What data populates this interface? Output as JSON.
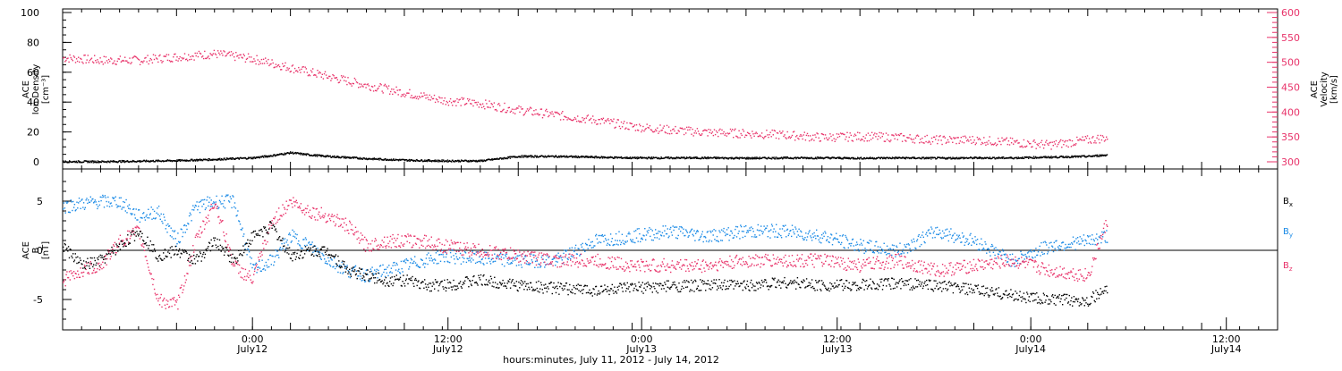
{
  "colors": {
    "black": "#000000",
    "pink": "#e8336a",
    "blue": "#1a8ae6"
  },
  "chart_data": [
    {
      "type": "scatter",
      "panel": "top",
      "ylabel_lines": [
        "ACE",
        "Ion Density",
        "[cm⁻³]"
      ],
      "y2label_lines": [
        "ACE",
        "Velocity",
        "[km/s]"
      ],
      "ylim": [
        0,
        100
      ],
      "y2lim": [
        300,
        600
      ],
      "y_ticks": [
        "0",
        "20",
        "40",
        "60",
        "80",
        "100"
      ],
      "y2_ticks": [
        "300",
        "350",
        "400",
        "450",
        "500",
        "550",
        "600"
      ],
      "xlim_hours": [
        0,
        64
      ],
      "series": [
        {
          "name": "",
          "axis": "left",
          "color": "#000000",
          "x": [
            0,
            2,
            4,
            6,
            8,
            10,
            11,
            12,
            13,
            14,
            16,
            18,
            20,
            22,
            24,
            26,
            28,
            30,
            32,
            34,
            36,
            38,
            40,
            42,
            44,
            46,
            48,
            50,
            52,
            54,
            55
          ],
          "y": [
            0.5,
            0.5,
            0.8,
            1.2,
            2.0,
            3.0,
            4.5,
            6.5,
            5.0,
            4.0,
            2.5,
            1.5,
            1.0,
            1.0,
            4.0,
            4.0,
            3.5,
            3.0,
            3.0,
            3.0,
            2.8,
            3.0,
            3.0,
            2.8,
            3.0,
            2.8,
            3.0,
            3.0,
            3.5,
            4.0,
            5.0
          ]
        },
        {
          "name": "",
          "axis": "right",
          "color": "#e8336a",
          "x": [
            0,
            2,
            4,
            6,
            8,
            10,
            12,
            14,
            16,
            18,
            20,
            22,
            24,
            26,
            28,
            30,
            32,
            34,
            36,
            38,
            40,
            42,
            44,
            46,
            48,
            50,
            52,
            54,
            55
          ],
          "y": [
            510,
            505,
            505,
            512,
            518,
            508,
            490,
            472,
            455,
            440,
            425,
            418,
            405,
            395,
            385,
            372,
            365,
            360,
            358,
            355,
            350,
            352,
            350,
            345,
            345,
            340,
            335,
            345,
            350
          ]
        }
      ]
    },
    {
      "type": "scatter",
      "panel": "bottom",
      "ylabel_lines": [
        "ACE",
        "B",
        "[nT]"
      ],
      "ylim": [
        -8,
        8
      ],
      "y_ticks": [
        "-5",
        "0",
        "5"
      ],
      "xlim_hours": [
        0,
        64
      ],
      "x_tick_labels": [
        {
          "time": "0:00",
          "date": "July12"
        },
        {
          "time": "12:00",
          "date": "July12"
        },
        {
          "time": "0:00",
          "date": "July13"
        },
        {
          "time": "12:00",
          "date": "July13"
        },
        {
          "time": "0:00",
          "date": "July14"
        },
        {
          "time": "12:00",
          "date": "July14"
        }
      ],
      "xlabel": "hours:minutes, July 11, 2012 - July 14, 2012",
      "series": [
        {
          "name": "Bx",
          "label_main": "B",
          "label_sub": "x",
          "color": "#000000",
          "x": [
            0,
            1,
            2,
            3,
            4,
            5,
            6,
            7,
            8,
            9,
            10,
            11,
            12,
            13,
            14,
            15,
            16,
            17,
            18,
            19,
            20,
            22,
            24,
            26,
            28,
            30,
            32,
            34,
            36,
            38,
            40,
            42,
            44,
            46,
            48,
            50,
            52,
            54,
            55
          ],
          "y": [
            0.5,
            -1.5,
            -1.0,
            0.5,
            2.0,
            -0.5,
            0.0,
            -1.0,
            1.0,
            -1.0,
            1.5,
            2.5,
            -0.5,
            0.0,
            0.0,
            -2.0,
            -2.5,
            -3.0,
            -3.0,
            -3.5,
            -3.5,
            -3.0,
            -3.5,
            -3.8,
            -4.0,
            -3.8,
            -3.6,
            -3.5,
            -3.5,
            -3.2,
            -3.5,
            -3.5,
            -3.3,
            -3.5,
            -4.0,
            -4.5,
            -5.0,
            -5.0,
            -4.0
          ]
        },
        {
          "name": "By",
          "label_main": "B",
          "label_sub": "y",
          "color": "#1a8ae6",
          "x": [
            0,
            1,
            2,
            3,
            4,
            5,
            6,
            7,
            8,
            9,
            10,
            11,
            12,
            13,
            14,
            15,
            16,
            17,
            18,
            19,
            20,
            22,
            24,
            26,
            28,
            30,
            32,
            34,
            36,
            38,
            40,
            42,
            44,
            46,
            48,
            50,
            52,
            54,
            55
          ],
          "y": [
            4.5,
            4.8,
            5.0,
            5.0,
            3.5,
            4.0,
            1.0,
            4.5,
            5.0,
            5.0,
            -2.0,
            -1.0,
            1.5,
            0.5,
            -1.0,
            -2.0,
            -2.5,
            -2.0,
            -1.5,
            -1.0,
            -0.5,
            -0.8,
            -1.0,
            -1.0,
            1.0,
            1.5,
            2.0,
            1.5,
            2.0,
            2.0,
            1.5,
            0.5,
            0.0,
            2.0,
            1.0,
            -1.0,
            0.5,
            1.0,
            1.5
          ]
        },
        {
          "name": "Bz",
          "label_main": "B",
          "label_sub": "z",
          "color": "#e8336a",
          "x": [
            0,
            1,
            2,
            3,
            4,
            5,
            6,
            7,
            8,
            9,
            10,
            11,
            12,
            13,
            14,
            15,
            16,
            17,
            18,
            19,
            20,
            22,
            24,
            26,
            28,
            30,
            32,
            34,
            36,
            38,
            40,
            42,
            44,
            46,
            48,
            50,
            52,
            54,
            55
          ],
          "y": [
            -3.0,
            -2.0,
            -1.5,
            1.0,
            2.0,
            -5.0,
            -5.5,
            1.0,
            5.0,
            -1.5,
            -3.0,
            3.0,
            5.0,
            4.0,
            3.5,
            2.5,
            0.5,
            1.0,
            1.0,
            1.0,
            0.5,
            0.0,
            -0.5,
            -1.0,
            -1.0,
            -1.5,
            -1.5,
            -1.5,
            -1.0,
            -1.0,
            -1.0,
            -1.5,
            -1.0,
            -2.0,
            -1.5,
            -1.0,
            -2.0,
            -2.5,
            3.0
          ]
        }
      ]
    }
  ]
}
